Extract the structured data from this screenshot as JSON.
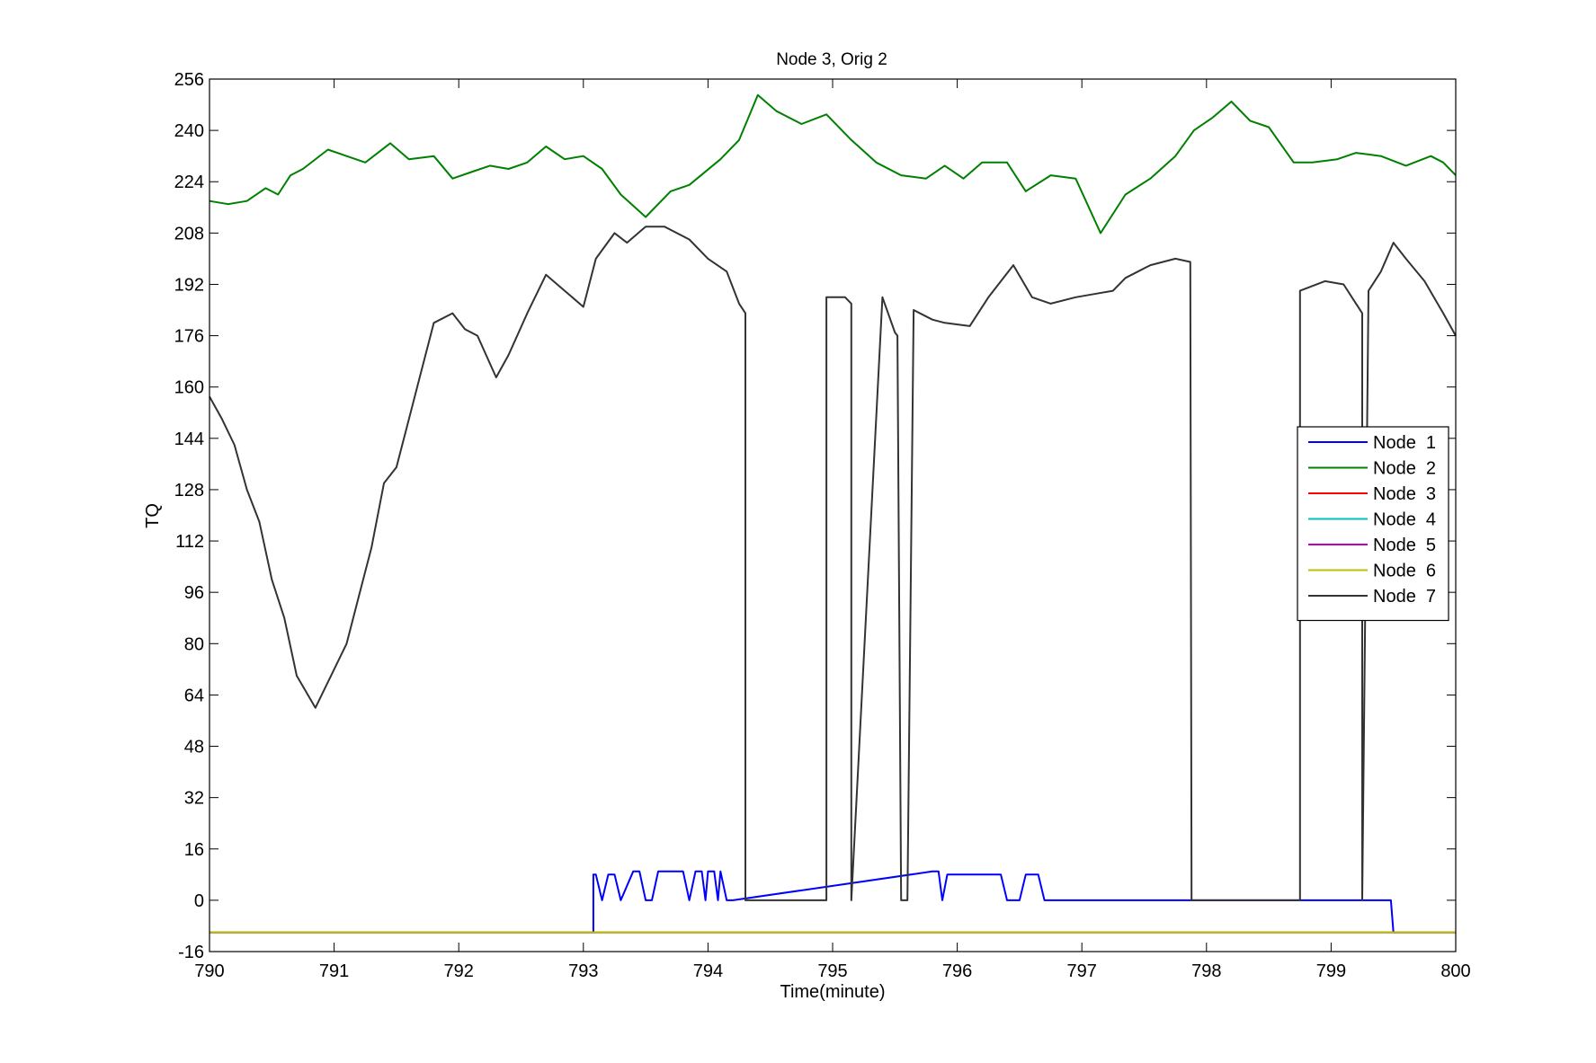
{
  "chart_data": {
    "type": "line",
    "title": "Node 3, Orig 2",
    "xlabel": "Time(minute)",
    "ylabel": "TQ",
    "xlim": [
      790,
      800
    ],
    "ylim": [
      -16,
      256
    ],
    "xticks": [
      790,
      791,
      792,
      793,
      794,
      795,
      796,
      797,
      798,
      799,
      800
    ],
    "yticks": [
      -16,
      0,
      16,
      32,
      48,
      64,
      80,
      96,
      112,
      128,
      144,
      160,
      176,
      192,
      208,
      224,
      240,
      256
    ],
    "grid": false,
    "legend_position": "right",
    "series": [
      {
        "name": "Node  1",
        "color": "#0000ff",
        "x": [
          790,
          793.08,
          793.08,
          793.1,
          793.15,
          793.2,
          793.25,
          793.3,
          793.4,
          793.45,
          793.5,
          793.55,
          793.6,
          793.8,
          793.85,
          793.9,
          793.95,
          793.98,
          794.0,
          794.05,
          794.08,
          794.1,
          794.15,
          794.2,
          795.8,
          795.85,
          795.88,
          795.92,
          795.95,
          796.35,
          796.4,
          796.5,
          796.55,
          796.65,
          796.7,
          799.48,
          799.5,
          800
        ],
        "y": [
          -10,
          -10,
          8,
          8,
          0,
          8,
          8,
          0,
          9,
          9,
          0,
          0,
          9,
          9,
          0,
          9,
          9,
          0,
          9,
          9,
          0,
          9,
          0,
          0,
          9,
          9,
          0,
          8,
          8,
          8,
          0,
          0,
          8,
          8,
          0,
          0,
          -10,
          -10
        ]
      },
      {
        "name": "Node  2",
        "color": "#008000",
        "x": [
          790,
          790.15,
          790.3,
          790.45,
          790.55,
          790.65,
          790.75,
          790.95,
          791.1,
          791.25,
          791.45,
          791.6,
          791.8,
          791.95,
          792.1,
          792.25,
          792.4,
          792.55,
          792.7,
          792.85,
          793.0,
          793.15,
          793.3,
          793.5,
          793.7,
          793.85,
          794.1,
          794.25,
          794.4,
          794.55,
          794.75,
          794.95,
          795.15,
          795.35,
          795.55,
          795.75,
          795.9,
          796.05,
          796.2,
          796.4,
          796.55,
          796.75,
          796.95,
          797.15,
          797.35,
          797.55,
          797.75,
          797.9,
          798.05,
          798.2,
          798.35,
          798.5,
          798.7,
          798.85,
          799.05,
          799.2,
          799.4,
          799.6,
          799.8,
          799.9,
          800
        ],
        "y": [
          218,
          217,
          218,
          222,
          220,
          226,
          228,
          234,
          232,
          230,
          236,
          231,
          232,
          225,
          227,
          229,
          228,
          230,
          235,
          231,
          232,
          228,
          220,
          213,
          221,
          223,
          231,
          237,
          251,
          246,
          242,
          245,
          237,
          230,
          226,
          225,
          229,
          225,
          230,
          230,
          221,
          226,
          225,
          208,
          220,
          225,
          232,
          240,
          244,
          249,
          243,
          241,
          230,
          230,
          231,
          233,
          232,
          229,
          232,
          230,
          226
        ]
      },
      {
        "name": "Node  3",
        "color": "#ff0000",
        "x": [
          790,
          800
        ],
        "y": [
          -10,
          -10
        ]
      },
      {
        "name": "Node  4",
        "color": "#00bfbf",
        "x": [
          790,
          800
        ],
        "y": [
          -10,
          -10
        ]
      },
      {
        "name": "Node  5",
        "color": "#bf00bf",
        "x": [
          790,
          800
        ],
        "y": [
          -10,
          -10
        ]
      },
      {
        "name": "Node  6",
        "color": "#bfbf00",
        "x": [
          790,
          800
        ],
        "y": [
          -10,
          -10
        ]
      },
      {
        "name": "Node  7",
        "color": "#333333",
        "x": [
          790,
          790.1,
          790.2,
          790.3,
          790.4,
          790.5,
          790.6,
          790.7,
          790.85,
          791.0,
          791.1,
          791.2,
          791.3,
          791.4,
          791.5,
          791.6,
          791.7,
          791.8,
          791.95,
          792.05,
          792.15,
          792.3,
          792.4,
          792.55,
          792.7,
          792.85,
          793.0,
          793.1,
          793.25,
          793.35,
          793.5,
          793.65,
          793.85,
          794.0,
          794.15,
          794.25,
          794.3,
          794.3,
          794.95,
          794.95,
          795.1,
          795.15,
          795.15,
          795.4,
          795.5,
          795.52,
          795.55,
          795.6,
          795.65,
          795.8,
          795.9,
          796.1,
          796.25,
          796.45,
          796.6,
          796.75,
          796.95,
          797.1,
          797.25,
          797.35,
          797.45,
          797.55,
          797.75,
          797.87,
          797.88,
          798.75,
          798.75,
          798.95,
          799.1,
          799.2,
          799.25,
          799.25,
          799.3,
          799.4,
          799.5,
          799.6,
          799.75,
          799.9,
          800
        ],
        "y": [
          157,
          150,
          142,
          128,
          118,
          100,
          88,
          70,
          60,
          72,
          80,
          95,
          110,
          130,
          135,
          150,
          165,
          180,
          183,
          178,
          176,
          163,
          170,
          183,
          195,
          190,
          185,
          200,
          208,
          205,
          210,
          210,
          206,
          200,
          196,
          186,
          183,
          0,
          0,
          188,
          188,
          186,
          0,
          188,
          177,
          176,
          0,
          0,
          184,
          181,
          180,
          179,
          188,
          198,
          188,
          186,
          188,
          189,
          190,
          194,
          196,
          198,
          200,
          199,
          0,
          0,
          190,
          193,
          192,
          186,
          183,
          0,
          190,
          196,
          205,
          200,
          193,
          183,
          176
        ]
      }
    ]
  }
}
